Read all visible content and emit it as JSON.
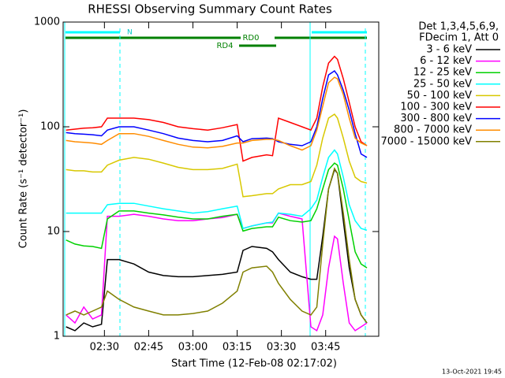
{
  "chart_data": {
    "type": "line",
    "title": "RHESSI Observing Summary Count Rates",
    "xlabel": "Start Time (12-Feb-08 02:17:02)",
    "ylabel": "Count Rate (s⁻¹ detector⁻¹)",
    "legend_header": [
      "Det 1,3,4,5,6,9,",
      "FDecim 1, Att 0"
    ],
    "annotations": [
      "N",
      "RD0",
      "RD4"
    ],
    "footer": "13-Oct-2021 19:45",
    "log_y": true,
    "legend": "right",
    "xlim": [
      "02:16",
      "04:03"
    ],
    "xticks": [
      "02:30",
      "02:45",
      "03:00",
      "03:15",
      "03:30",
      "03:45"
    ],
    "ylim": [
      1,
      1000
    ],
    "yticks": [
      1,
      10,
      100,
      1000
    ],
    "x": [
      "02:17",
      "02:20",
      "02:23",
      "02:26",
      "02:29",
      "02:31",
      "02:35",
      "02:40",
      "02:45",
      "02:50",
      "02:55",
      "03:00",
      "03:05",
      "03:10",
      "03:15",
      "03:17",
      "03:20",
      "03:25",
      "03:27",
      "03:29",
      "03:33",
      "03:37",
      "03:40",
      "03:42",
      "03:44",
      "03:46",
      "03:48",
      "03:49",
      "03:51",
      "03:53",
      "03:55",
      "03:57",
      "03:59"
    ],
    "series": [
      {
        "name": "3 - 6 keV",
        "color": "#000000",
        "values": [
          1.23,
          1.13,
          1.34,
          1.23,
          1.3,
          5.4,
          5.4,
          4.9,
          4.1,
          3.8,
          3.7,
          3.7,
          3.8,
          3.9,
          4.1,
          6.6,
          7.2,
          6.9,
          6.4,
          5.4,
          4.1,
          3.7,
          3.5,
          3.5,
          9,
          25.5,
          39,
          36,
          12.7,
          4.5,
          2.25,
          1.6,
          1.34
        ]
      },
      {
        "name": "6 - 12 keV",
        "color": "#ff00ff",
        "values": [
          1.6,
          1.34,
          1.9,
          1.46,
          1.6,
          14,
          14,
          14.6,
          14,
          13.2,
          12.7,
          12.7,
          13.2,
          13.6,
          14.6,
          10.7,
          11.3,
          12.1,
          12.1,
          15,
          14,
          13.2,
          1.23,
          1.13,
          1.6,
          4.5,
          9,
          8.5,
          3.2,
          1.34,
          1.13,
          1.23,
          1.34
        ]
      },
      {
        "name": "12 - 25 keV",
        "color": "#00d000",
        "values": [
          8.3,
          7.6,
          7.3,
          7.2,
          6.9,
          13.2,
          15.7,
          15.7,
          15,
          14.4,
          13.7,
          13.2,
          13.2,
          14,
          14.6,
          10.1,
          10.7,
          11.1,
          11.1,
          13.7,
          12.7,
          12.3,
          12.7,
          16.5,
          25.5,
          39,
          45,
          43,
          25.5,
          12.7,
          6.4,
          4.9,
          4.5
        ]
      },
      {
        "name": "25 - 50 keV",
        "color": "#00ffff",
        "values": [
          15,
          15,
          15,
          15,
          15,
          18,
          18.6,
          18.6,
          17.5,
          16.5,
          15.7,
          15,
          15.5,
          16.5,
          17.5,
          10.7,
          11.3,
          12.1,
          12.3,
          15,
          14.6,
          14,
          16.5,
          20,
          33,
          51,
          60,
          55,
          33,
          18,
          12.7,
          10.7,
          10.3
        ]
      },
      {
        "name": "50 - 100 keV",
        "color": "#d8c800",
        "values": [
          39,
          38,
          38,
          37,
          37,
          43,
          48,
          51,
          49,
          45,
          41,
          39,
          39,
          40,
          44,
          21.5,
          22,
          23,
          23,
          25.5,
          28,
          28,
          30,
          43,
          78,
          121,
          132,
          121,
          78,
          47,
          33,
          30,
          29
        ]
      },
      {
        "name": "100 - 300 keV",
        "color": "#ff0000",
        "values": [
          93,
          95,
          97,
          98,
          100,
          121,
          121,
          121,
          117,
          110,
          100,
          96,
          93,
          98,
          105,
          47,
          51,
          54,
          53,
          121,
          110,
          100,
          93,
          121,
          241,
          406,
          470,
          440,
          287,
          171,
          100,
          72,
          66
        ]
      },
      {
        "name": "300 - 800 keV",
        "color": "#0000ff",
        "values": [
          88,
          86,
          85,
          84,
          82,
          93,
          100,
          100,
          93,
          86,
          78,
          74,
          72,
          74,
          82,
          72,
          77,
          78,
          77,
          72,
          68,
          66,
          72,
          100,
          186,
          313,
          342,
          313,
          222,
          144,
          86,
          55,
          51
        ]
      },
      {
        "name": "800 - 7000 keV",
        "color": "#ff8c00",
        "values": [
          74,
          72,
          71,
          70,
          68,
          74,
          86,
          86,
          81,
          74,
          68,
          64,
          63,
          65,
          70,
          70,
          74,
          76,
          76,
          74,
          66,
          60,
          66,
          93,
          157,
          263,
          297,
          287,
          203,
          121,
          78,
          70,
          66
        ]
      },
      {
        "name": "7000 - 15000 keV",
        "color": "#808000",
        "values": [
          1.6,
          1.74,
          1.6,
          1.74,
          1.9,
          2.7,
          2.25,
          1.9,
          1.74,
          1.6,
          1.6,
          1.65,
          1.74,
          2.07,
          2.7,
          4.1,
          4.5,
          4.67,
          4.1,
          3.2,
          2.25,
          1.74,
          1.6,
          1.9,
          7.6,
          25.5,
          40,
          36,
          15,
          5.4,
          2.25,
          1.6,
          1.34
        ]
      }
    ]
  }
}
